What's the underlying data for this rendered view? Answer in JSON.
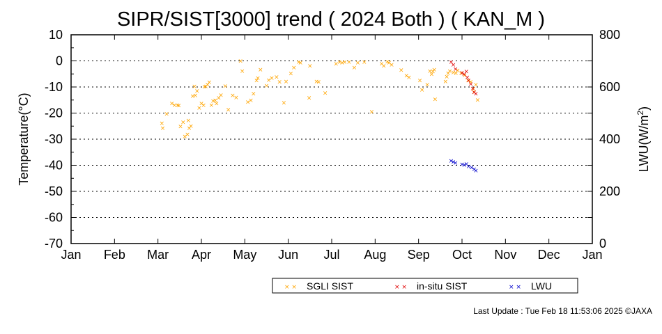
{
  "chart_data": {
    "type": "scatter",
    "title": "SIPR/SIST[3000] trend ( 2024 Both ) ( KAN_M )",
    "xlabel": "",
    "ylabel": "Temperature(°C)",
    "y2label": "LWU(W/m",
    "y2label_sup": "2",
    "y2label_end": ")",
    "x_ticks": [
      "Jan",
      "Feb",
      "Mar",
      "Apr",
      "May",
      "Jun",
      "Jul",
      "Aug",
      "Sep",
      "Oct",
      "Nov",
      "Dec",
      "Jan"
    ],
    "xlim_month": [
      0,
      12
    ],
    "ylim": [
      -70,
      10
    ],
    "y_ticks": [
      10,
      0,
      -10,
      -20,
      -30,
      -40,
      -50,
      -60,
      -70
    ],
    "y2lim": [
      0,
      800
    ],
    "y2_ticks": [
      800,
      600,
      400,
      200,
      0
    ],
    "grid": "horizontal dotted",
    "legend_placement": "bottom",
    "series": [
      {
        "name": "SGLI SIST",
        "axis": "left",
        "color": "#ffa500",
        "marker": "x",
        "points": [
          [
            2.09,
            -23.9
          ],
          [
            2.11,
            -25.7
          ],
          [
            2.2,
            -20.2
          ],
          [
            2.32,
            -16.2
          ],
          [
            2.38,
            -16.9
          ],
          [
            2.45,
            -16.9
          ],
          [
            2.48,
            -17.1
          ],
          [
            2.52,
            -25.0
          ],
          [
            2.58,
            -23.4
          ],
          [
            2.62,
            -28.9
          ],
          [
            2.68,
            -28.1
          ],
          [
            2.7,
            -22.8
          ],
          [
            2.72,
            -25.7
          ],
          [
            2.76,
            -24.9
          ],
          [
            2.8,
            -13.4
          ],
          [
            2.84,
            -9.7
          ],
          [
            2.86,
            -13.2
          ],
          [
            2.9,
            -11.5
          ],
          [
            2.95,
            -18.0
          ],
          [
            3.0,
            -16.2
          ],
          [
            3.05,
            -16.9
          ],
          [
            3.07,
            -9.8
          ],
          [
            3.1,
            -9.7
          ],
          [
            3.14,
            -9.0
          ],
          [
            3.18,
            -8.1
          ],
          [
            3.23,
            -16.9
          ],
          [
            3.27,
            -15.3
          ],
          [
            3.32,
            -15.0
          ],
          [
            3.35,
            -16.2
          ],
          [
            3.4,
            -14.1
          ],
          [
            3.45,
            -13.0
          ],
          [
            3.55,
            -9.6
          ],
          [
            3.62,
            -18.6
          ],
          [
            3.72,
            -13.2
          ],
          [
            3.8,
            -14.0
          ],
          [
            3.9,
            0.0
          ],
          [
            3.94,
            -3.8
          ],
          [
            4.07,
            -15.7
          ],
          [
            4.14,
            -15.0
          ],
          [
            4.2,
            -12.5
          ],
          [
            4.27,
            -7.5
          ],
          [
            4.3,
            -6.5
          ],
          [
            4.36,
            -3.3
          ],
          [
            4.5,
            -9.5
          ],
          [
            4.55,
            -7.3
          ],
          [
            4.62,
            -6.5
          ],
          [
            4.73,
            -6.1
          ],
          [
            4.8,
            -8.0
          ],
          [
            4.9,
            -16.0
          ],
          [
            4.95,
            -7.8
          ],
          [
            5.06,
            -4.8
          ],
          [
            5.13,
            -2.5
          ],
          [
            5.24,
            -0.4
          ],
          [
            5.28,
            -0.6
          ],
          [
            5.48,
            -14.1
          ],
          [
            5.5,
            -1.8
          ],
          [
            5.65,
            -7.8
          ],
          [
            5.7,
            -8.0
          ],
          [
            5.85,
            -12.3
          ],
          [
            6.1,
            -1.0
          ],
          [
            6.18,
            -0.4
          ],
          [
            6.24,
            -0.6
          ],
          [
            6.3,
            -0.4
          ],
          [
            6.4,
            -0.4
          ],
          [
            6.52,
            -2.5
          ],
          [
            6.6,
            -0.6
          ],
          [
            6.75,
            -0.4
          ],
          [
            6.92,
            -19.5
          ],
          [
            7.15,
            -1.0
          ],
          [
            7.2,
            -1.8
          ],
          [
            7.28,
            -0.3
          ],
          [
            7.32,
            -0.6
          ],
          [
            7.38,
            -1.4
          ],
          [
            7.6,
            -3.5
          ],
          [
            7.72,
            -5.6
          ],
          [
            7.78,
            -6.2
          ],
          [
            8.03,
            -7.4
          ],
          [
            8.08,
            -11.0
          ],
          [
            8.2,
            -9.0
          ],
          [
            8.26,
            -3.8
          ],
          [
            8.3,
            -5.0
          ],
          [
            8.33,
            -4.0
          ],
          [
            8.36,
            -3.3
          ],
          [
            8.38,
            -14.7
          ],
          [
            8.62,
            -7.8
          ],
          [
            8.65,
            -6.0
          ],
          [
            8.68,
            -4.7
          ],
          [
            8.72,
            -3.9
          ],
          [
            8.8,
            -4.4
          ],
          [
            8.86,
            -4.7
          ],
          [
            8.9,
            -3.6
          ],
          [
            8.98,
            -4.6
          ],
          [
            9.06,
            -5.4
          ],
          [
            9.14,
            -7.4
          ],
          [
            9.2,
            -8.0
          ],
          [
            9.26,
            -10.6
          ],
          [
            9.28,
            -11.8
          ],
          [
            9.32,
            -9.0
          ],
          [
            9.36,
            -14.9
          ]
        ]
      },
      {
        "name": "in-situ SIST",
        "axis": "left",
        "color": "#e00000",
        "marker": "x",
        "points": [
          [
            8.75,
            -0.4
          ],
          [
            8.8,
            -1.4
          ],
          [
            8.85,
            -3.0
          ],
          [
            9.0,
            -4.5
          ],
          [
            9.05,
            -5.0
          ],
          [
            9.1,
            -4.0
          ],
          [
            9.12,
            -6.3
          ],
          [
            9.15,
            -7.5
          ],
          [
            9.2,
            -8.8
          ],
          [
            9.25,
            -10.5
          ],
          [
            9.28,
            -12.0
          ],
          [
            9.32,
            -12.5
          ]
        ]
      },
      {
        "name": "LWU",
        "axis": "right",
        "color": "#0000cc",
        "marker": "x",
        "points": [
          [
            8.75,
            318
          ],
          [
            8.8,
            314
          ],
          [
            8.85,
            309
          ],
          [
            9.0,
            304
          ],
          [
            9.05,
            302
          ],
          [
            9.1,
            306
          ],
          [
            9.15,
            296
          ],
          [
            9.22,
            292
          ],
          [
            9.28,
            285
          ],
          [
            9.32,
            280
          ]
        ]
      }
    ]
  },
  "footer": {
    "last_update": "Last Update : Tue Feb 18 11:53:06 2025  ©JAXA"
  }
}
